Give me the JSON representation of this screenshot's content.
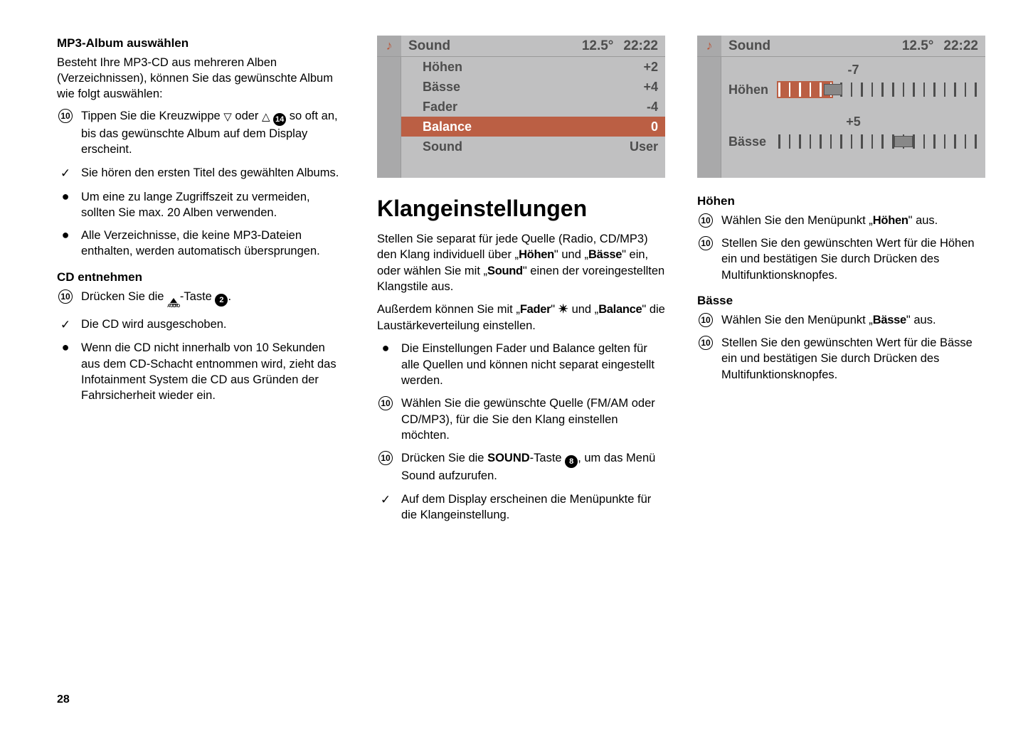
{
  "page_number": "28",
  "colors": {
    "display_bg": "#c0c0c1",
    "display_side": "#a9a9aa",
    "accent": "#bb5f44",
    "display_text": "#4d4d4d"
  },
  "col1": {
    "h_mp3": "MP3-Album auswählen",
    "p_mp3_intro": "Besteht Ihre MP3-CD aus mehreren Alben (Verzeichnissen), können Sie das gewünschte Album wie folgt auswählen:",
    "step1_a": "Tippen Sie die Kreuzwippe ",
    "step1_b": " oder ",
    "step1_c": " so oft an, bis das gewünschte Album auf dem Display erscheint.",
    "step2": "Sie hören den ersten Titel des gewählten Albums.",
    "step3": "Um eine zu lange Zugriffszeit zu vermeiden, sollten Sie max. 20 Alben verwenden.",
    "step4": "Alle Verzeichnisse, die keine MP3-Dateien enthalten, werden automatisch übersprungen.",
    "h_cd": "CD entnehmen",
    "cd1_a": "Drücken Sie die ",
    "cd1_b": "-Taste ",
    "cd1_c": ".",
    "cd2": "Die CD wird ausgeschoben.",
    "cd3": "Wenn die CD nicht innerhalb von 10 Sekunden aus dem CD-Schacht entnommen wird, zieht das Infotainment System die CD aus Gründen der Fahrsicherheit wieder ein.",
    "btn14": "14",
    "btn2": "2",
    "btn10": "10"
  },
  "display1": {
    "title": "Sound",
    "temp": "12.5°",
    "time": "22:22",
    "rows": [
      {
        "label": "Höhen",
        "val": "+2",
        "sel": false
      },
      {
        "label": "Bässe",
        "val": "+4",
        "sel": false
      },
      {
        "label": "Fader",
        "val": "-4",
        "sel": false
      },
      {
        "label": "Balance",
        "val": "0",
        "sel": true
      },
      {
        "label": "Sound",
        "val": "User",
        "sel": false
      }
    ]
  },
  "col2": {
    "h_klang": "Klangeinstellungen",
    "p1_a": "Stellen Sie separat für jede Quelle (Radio, CD/MP3) den Klang individuell über „",
    "p1_hohen": "Höhen",
    "p1_b": "\" und „",
    "p1_basse": "Bässe",
    "p1_c": "\" ein, oder wählen Sie mit „",
    "p1_sound": "Sound",
    "p1_d": "\" einen der voreingestellten Klangstile aus.",
    "p2_a": "Außerdem können Sie mit „",
    "p2_fader": "Fader",
    "p2_b": "\" ",
    "p2_c": " und „",
    "p2_balance": "Balance",
    "p2_d": "\" die Laustärkeverteilung einstellen.",
    "b1": "Die Einstellungen Fader und Balance gelten für alle Quellen und können nicht separat eingestellt werden.",
    "b2": "Wählen Sie die gewünschte Quelle (FM/AM oder CD/MP3), für die Sie den Klang einstellen möchten.",
    "b3_a": "Drücken Sie die ",
    "b3_sound": "SOUND",
    "b3_b": "-Taste ",
    "b3_c": ", um das Menü Sound aufzurufen.",
    "b4": "Auf dem Display erscheinen die Menüpunkte für die Klangeinstellung.",
    "btn8": "8"
  },
  "display2": {
    "title": "Sound",
    "temp": "12.5°",
    "time": "22:22",
    "hohen": {
      "label": "Höhen",
      "value": "-7",
      "ticks": 20,
      "handle_pct": 28,
      "fill_pct": 28,
      "selected": true
    },
    "basse": {
      "label": "Bässe",
      "value": "+5",
      "ticks": 20,
      "handle_pct": 63,
      "selected": false
    }
  },
  "col3": {
    "h_hohen": "Höhen",
    "h1_a": "Wählen Sie den Menüpunkt „",
    "h1_b": "Höhen",
    "h1_c": "\" aus.",
    "h2": "Stellen Sie den gewünschten Wert für die Höhen ein und bestätigen Sie durch Drücken des Multifunktionsknopfes.",
    "h_basse": "Bässe",
    "b1_a": "Wählen Sie den Menüpunkt „",
    "b1_b": "Bässe",
    "b1_c": "\" aus.",
    "b2": "Stellen Sie den gewünschten Wert für die Bässe ein und bestätigen Sie durch Drücken des Multifunktionsknopfes."
  }
}
